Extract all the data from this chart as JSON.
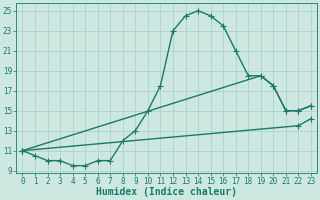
{
  "title": "",
  "xlabel": "Humidex (Indice chaleur)",
  "xlim": [
    -0.5,
    23.5
  ],
  "ylim": [
    8.8,
    25.8
  ],
  "xticks": [
    0,
    1,
    2,
    3,
    4,
    5,
    6,
    7,
    8,
    9,
    10,
    11,
    12,
    13,
    14,
    15,
    16,
    17,
    18,
    19,
    20,
    21,
    22,
    23
  ],
  "yticks": [
    9,
    11,
    13,
    15,
    17,
    19,
    21,
    23,
    25
  ],
  "background_color": "#cce8e0",
  "grid_color": "#aacccc",
  "line_color": "#1a7a6a",
  "line1_x": [
    0,
    1,
    2,
    3,
    4,
    5,
    6,
    7,
    8,
    9,
    10,
    11,
    12,
    13,
    14,
    15,
    16,
    17,
    18,
    19,
    20,
    21,
    22,
    23
  ],
  "line1_y": [
    11,
    10.5,
    10,
    10,
    9.5,
    9.5,
    10,
    10,
    12,
    13,
    15,
    17.5,
    23,
    24.5,
    25,
    24.5,
    23.5,
    21,
    18.5,
    18.5,
    17.5,
    15,
    15,
    15.5
  ],
  "line2_x": [
    0,
    19,
    20,
    21,
    22,
    23
  ],
  "line2_y": [
    11,
    18.5,
    17.5,
    15,
    15,
    15.5
  ],
  "line3_x": [
    0,
    22,
    23
  ],
  "line3_y": [
    11,
    13.5,
    14.2
  ],
  "marker": "+",
  "markersize": 4,
  "linewidth": 1.0,
  "tick_fontsize": 5.5,
  "label_fontsize": 7.0
}
